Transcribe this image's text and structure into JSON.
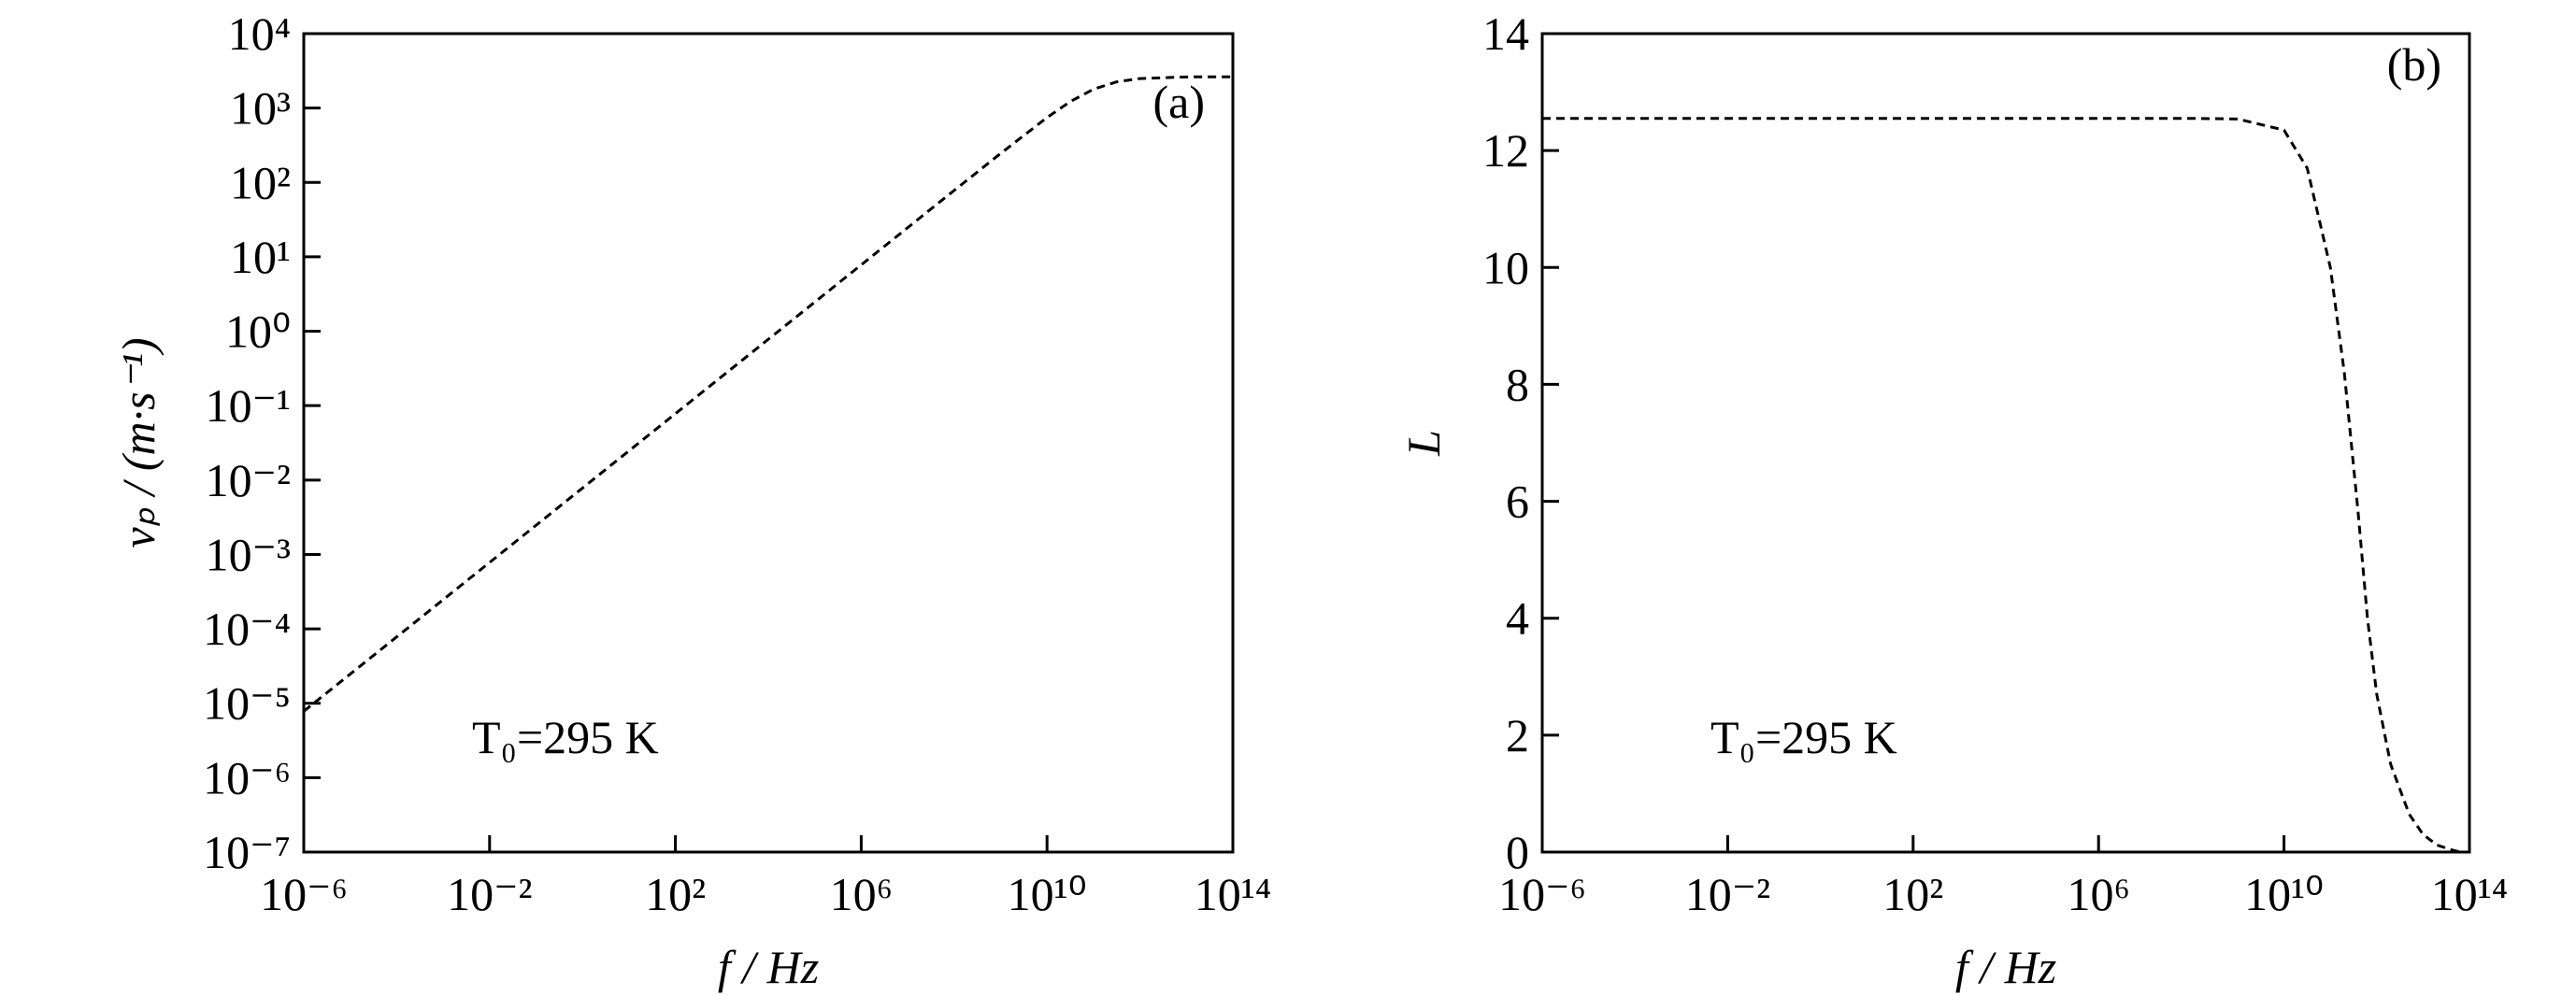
{
  "chart_data": [
    {
      "type": "line",
      "xlabel": "f / Hz",
      "ylabel": "vₚ / (m·s⁻¹)",
      "annotations": [
        "(a)",
        "T₀=295 K"
      ],
      "xscale": "log",
      "yscale": "log",
      "xlim": [
        1e-06,
        100000000000000.0
      ],
      "ylim": [
        1e-07,
        10000.0
      ],
      "xticks": [
        {
          "value": 1e-06,
          "label": "10⁻⁶"
        },
        {
          "value": 0.01,
          "label": "10⁻²"
        },
        {
          "value": 100,
          "label": "10²"
        },
        {
          "value": 1000000.0,
          "label": "10⁶"
        },
        {
          "value": 10000000000.0,
          "label": "10¹⁰"
        },
        {
          "value": 100000000000000.0,
          "label": "10¹⁴"
        }
      ],
      "yticks": [
        {
          "value": 1e-07,
          "label": "10⁻⁷"
        },
        {
          "value": 1e-06,
          "label": "10⁻⁶"
        },
        {
          "value": 1e-05,
          "label": "10⁻⁵"
        },
        {
          "value": 0.0001,
          "label": "10⁻⁴"
        },
        {
          "value": 0.001,
          "label": "10⁻³"
        },
        {
          "value": 0.01,
          "label": "10⁻²"
        },
        {
          "value": 0.1,
          "label": "10⁻¹"
        },
        {
          "value": 1,
          "label": "10⁰"
        },
        {
          "value": 10,
          "label": "10¹"
        },
        {
          "value": 100,
          "label": "10²"
        },
        {
          "value": 1000,
          "label": "10³"
        },
        {
          "value": 10000,
          "label": "10⁴"
        }
      ],
      "series": [
        {
          "color": "#000000",
          "x": [
            1e-06,
            0.0001,
            0.01,
            1,
            100,
            10000,
            1000000.0,
            100000000.0,
            1000000000.0,
            10000000000.0,
            31600000000.0,
            100000000000.0,
            316000000000.0,
            1000000000000.0,
            10000000000000.0,
            100000000000000.0
          ],
          "values": [
            7.8e-06,
            7.8e-05,
            0.00078,
            0.0078,
            0.078,
            0.78,
            7.8,
            78,
            245,
            745,
            1220,
            1790,
            2250,
            2490,
            2620,
            2630
          ]
        }
      ]
    },
    {
      "type": "line",
      "xlabel": "f / Hz",
      "ylabel": "L",
      "annotations": [
        "(b)",
        "T₀=295 K"
      ],
      "xscale": "log",
      "yscale": "linear",
      "xlim": [
        1e-06,
        100000000000000.0
      ],
      "ylim": [
        0,
        14
      ],
      "xticks": [
        {
          "value": 1e-06,
          "label": "10⁻⁶"
        },
        {
          "value": 0.01,
          "label": "10⁻²"
        },
        {
          "value": 100,
          "label": "10²"
        },
        {
          "value": 1000000.0,
          "label": "10⁶"
        },
        {
          "value": 10000000000.0,
          "label": "10¹⁰"
        },
        {
          "value": 100000000000000.0,
          "label": "10¹⁴"
        }
      ],
      "yticks": [
        0,
        2,
        4,
        6,
        8,
        10,
        12,
        14
      ],
      "series": [
        {
          "color": "#000000",
          "x": [
            1e-06,
            0.0001,
            0.01,
            1,
            100,
            10000,
            1000000.0,
            100000000.0,
            1000000000.0,
            10000000000.0,
            31600000000.0,
            100000000000.0,
            200000000000.0,
            398000000000.0,
            631000000000.0,
            1000000000000.0,
            2000000000000.0,
            5000000000000.0,
            10000000000000.0,
            20000000000000.0,
            40000000000000.0,
            63100000000000.0
          ],
          "values": [
            12.55,
            12.55,
            12.55,
            12.55,
            12.55,
            12.55,
            12.55,
            12.55,
            12.54,
            12.35,
            11.7,
            10.0,
            8.2,
            5.8,
            4.0,
            2.7,
            1.5,
            0.65,
            0.3,
            0.12,
            0.04,
            0
          ]
        }
      ]
    }
  ]
}
